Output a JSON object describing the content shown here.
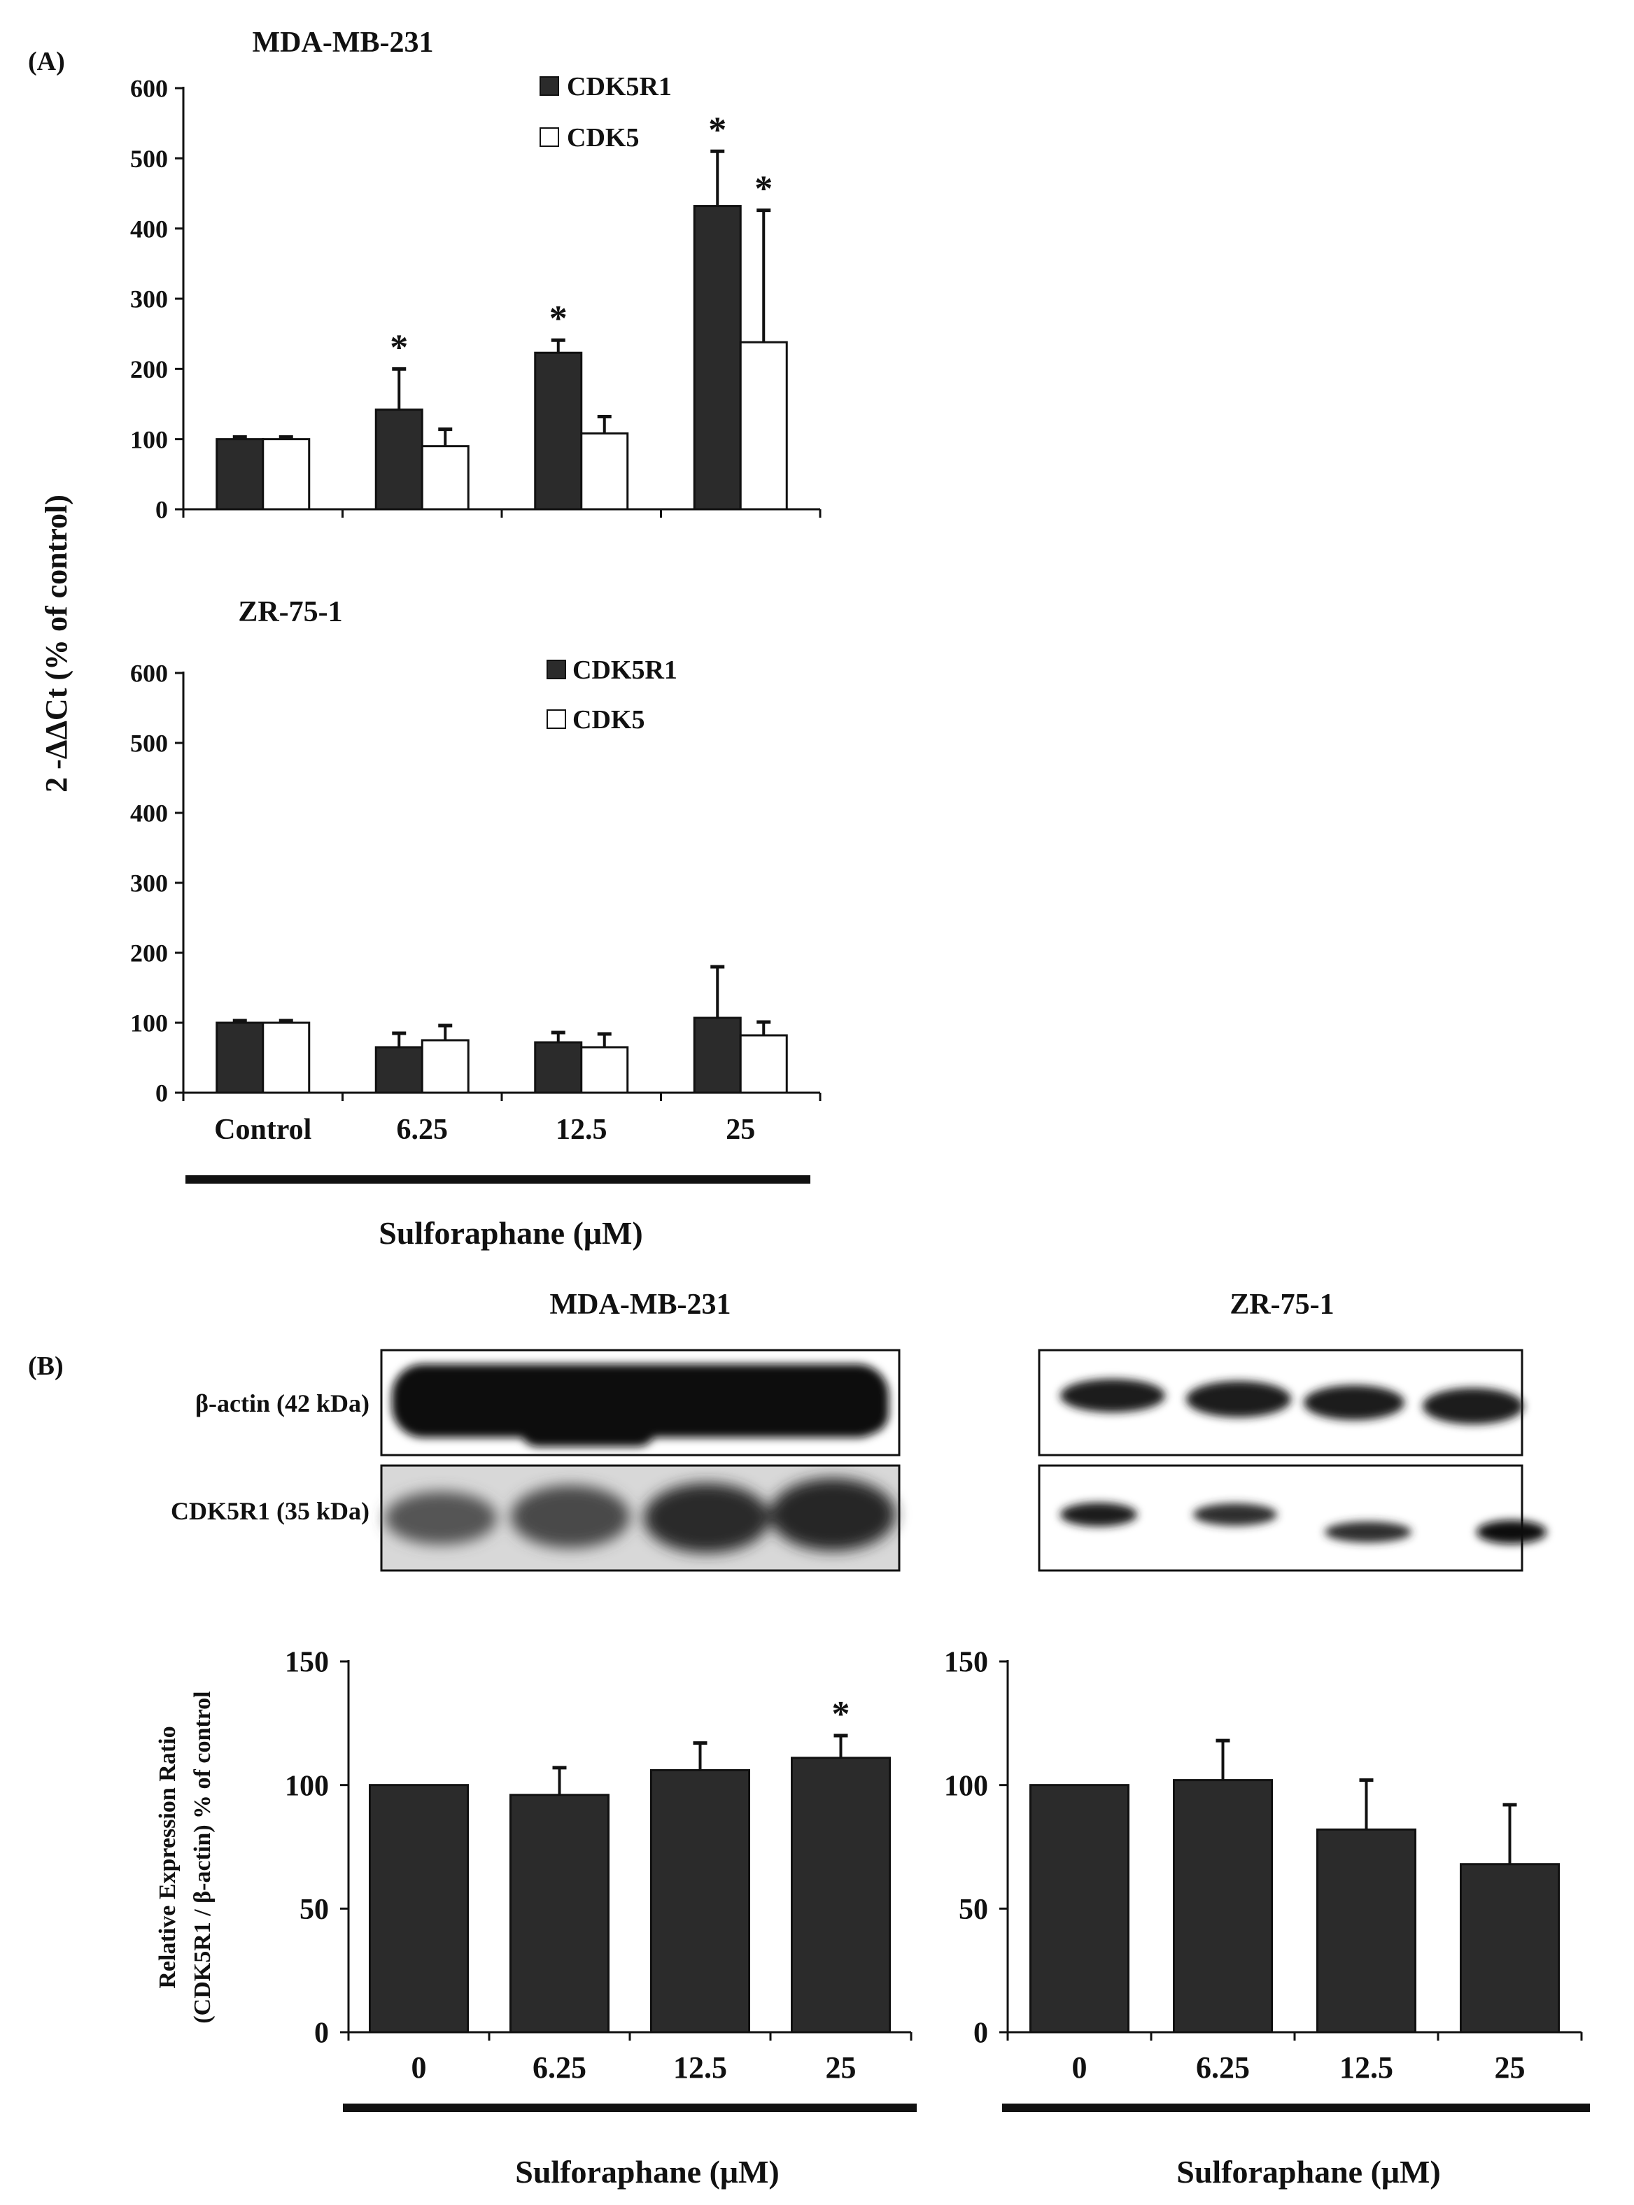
{
  "colors": {
    "ink": "#111111",
    "bar_dark": "#2b2b2b",
    "bar_light": "#ffffff",
    "paper": "#ffffff"
  },
  "panel_a": {
    "label": "(A)",
    "ylabel": "2 -ΔΔCt (% of control)",
    "xlabel": "Sulforaphane (μM)"
  },
  "panel_b": {
    "label": "(B)",
    "blot_titles": [
      "MDA-MB-231",
      "ZR-75-1"
    ],
    "band_labels": [
      "β-actin (42 kDa)",
      "CDK5R1 (35 kDa)"
    ],
    "ylabel_line1": "Relative Expression Ratio",
    "ylabel_line2": "(CDK5R1 / β-actin) % of control",
    "xlabel": "Sulforaphane (μM)"
  },
  "chart_data": [
    {
      "id": "a_top",
      "type": "bar",
      "title": "MDA-MB-231",
      "categories": [
        "Control",
        "6.25",
        "12.5",
        "25"
      ],
      "show_category_labels": false,
      "ylim": [
        0,
        600
      ],
      "yticks": [
        "0",
        "100",
        "200",
        "300",
        "400",
        "500",
        "600"
      ],
      "legend_position": "top-center",
      "series": [
        {
          "name": "CDK5R1",
          "color": "#2b2b2b",
          "values": [
            100,
            142,
            223,
            432
          ],
          "errors": [
            3,
            58,
            18,
            78
          ],
          "stars": [
            false,
            true,
            true,
            true
          ]
        },
        {
          "name": "CDK5",
          "color": "#ffffff",
          "values": [
            100,
            90,
            108,
            238
          ],
          "errors": [
            3,
            24,
            24,
            188
          ],
          "stars": [
            false,
            false,
            false,
            true
          ]
        }
      ]
    },
    {
      "id": "a_bottom",
      "type": "bar",
      "title": "ZR-75-1",
      "categories": [
        "Control",
        "6.25",
        "12.5",
        "25"
      ],
      "show_category_labels": true,
      "ylim": [
        0,
        600
      ],
      "yticks": [
        "0",
        "100",
        "200",
        "300",
        "400",
        "500",
        "600"
      ],
      "legend_position": "top-center",
      "series": [
        {
          "name": "CDK5R1",
          "color": "#2b2b2b",
          "values": [
            100,
            65,
            72,
            107
          ],
          "errors": [
            3,
            20,
            14,
            73
          ],
          "stars": [
            false,
            false,
            false,
            false
          ]
        },
        {
          "name": "CDK5",
          "color": "#ffffff",
          "values": [
            100,
            75,
            65,
            82
          ],
          "errors": [
            3,
            21,
            19,
            19
          ],
          "stars": [
            false,
            false,
            false,
            false
          ]
        }
      ]
    },
    {
      "id": "b_left",
      "type": "bar",
      "title": "",
      "categories": [
        "0",
        "6.25",
        "12.5",
        "25"
      ],
      "show_category_labels": true,
      "ylim": [
        0,
        150
      ],
      "yticks": [
        "0",
        "50",
        "100",
        "150"
      ],
      "series": [
        {
          "name": "",
          "color": "#2b2b2b",
          "values": [
            100,
            96,
            106,
            111
          ],
          "errors": [
            0,
            11,
            11,
            9
          ],
          "stars": [
            false,
            false,
            false,
            true
          ]
        }
      ]
    },
    {
      "id": "b_right",
      "type": "bar",
      "title": "",
      "categories": [
        "0",
        "6.25",
        "12.5",
        "25"
      ],
      "show_category_labels": true,
      "ylim": [
        0,
        150
      ],
      "yticks": [
        "0",
        "50",
        "100",
        "150"
      ],
      "series": [
        {
          "name": "",
          "color": "#2b2b2b",
          "values": [
            100,
            102,
            82,
            68
          ],
          "errors": [
            0,
            16,
            20,
            24
          ],
          "stars": [
            false,
            false,
            false,
            false
          ]
        }
      ]
    }
  ]
}
